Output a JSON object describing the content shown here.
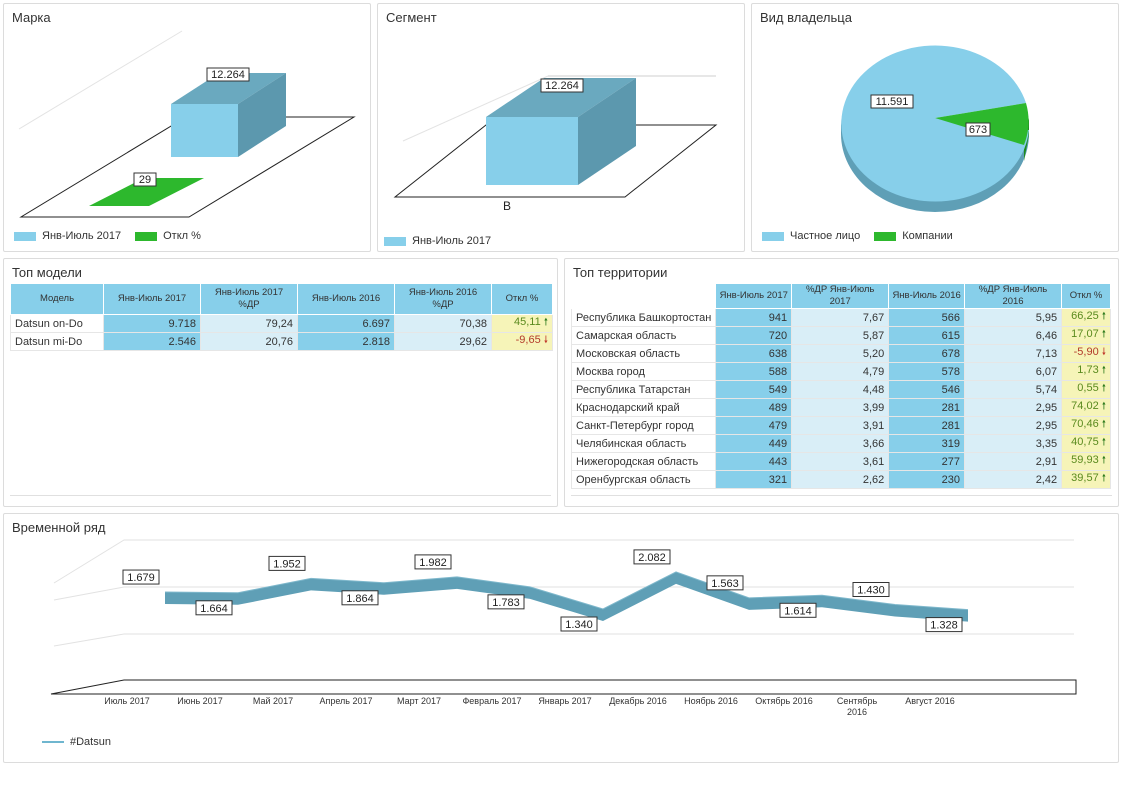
{
  "brand_panel": {
    "title": "Марка",
    "bar_main_value": 12264,
    "bar_main_label": "12.264",
    "bar_small_value": 29,
    "bar_small_label": "29",
    "legend": [
      {
        "label": "Янв-Июль 2017",
        "color": "#87cfea"
      },
      {
        "label": "Откл %",
        "color": "#2db82d"
      }
    ]
  },
  "segment_panel": {
    "title": "Сегмент",
    "bar_value": 12264,
    "bar_label": "12.264",
    "category": "B",
    "legend": [
      {
        "label": "Янв-Июль 2017",
        "color": "#87cfea"
      }
    ]
  },
  "owner_panel": {
    "title": "Вид владельца",
    "slices": [
      {
        "label": "Частное лицо",
        "value": 11591,
        "value_label": "11.591",
        "color": "#87cfea"
      },
      {
        "label": "Компании",
        "value": 673,
        "value_label": "673",
        "color": "#2db82d"
      }
    ]
  },
  "models_panel": {
    "title": "Топ модели",
    "headers": [
      "Модель",
      "Янв-Июль 2017",
      "Янв-Июль 2017 %ДР",
      "Янв-Июль 2016",
      "Янв-Июль 2016 %ДР",
      "Откл %"
    ],
    "rows": [
      {
        "name": "Datsun on-Do",
        "v1": "9.718",
        "p1": "79,24",
        "v2": "6.697",
        "p2": "70,38",
        "dev": "45,11",
        "dir": "up"
      },
      {
        "name": "Datsun mi-Do",
        "v1": "2.546",
        "p1": "20,76",
        "v2": "2.818",
        "p2": "29,62",
        "dev": "-9,65",
        "dir": "down"
      }
    ]
  },
  "territory_panel": {
    "title": "Топ территории",
    "headers": [
      "",
      "Янв-Июль 2017",
      "%ДР Янв-Июль 2017",
      "Янв-Июль 2016",
      "%ДР Янв-Июль 2016",
      "Откл %"
    ],
    "rows": [
      {
        "name": "Республика Башкортостан",
        "v1": "941",
        "p1": "7,67",
        "v2": "566",
        "p2": "5,95",
        "dev": "66,25",
        "dir": "up"
      },
      {
        "name": "Самарская область",
        "v1": "720",
        "p1": "5,87",
        "v2": "615",
        "p2": "6,46",
        "dev": "17,07",
        "dir": "up"
      },
      {
        "name": "Московская область",
        "v1": "638",
        "p1": "5,20",
        "v2": "678",
        "p2": "7,13",
        "dev": "-5,90",
        "dir": "down"
      },
      {
        "name": "Москва город",
        "v1": "588",
        "p1": "4,79",
        "v2": "578",
        "p2": "6,07",
        "dev": "1,73",
        "dir": "up"
      },
      {
        "name": "Республика Татарстан",
        "v1": "549",
        "p1": "4,48",
        "v2": "546",
        "p2": "5,74",
        "dev": "0,55",
        "dir": "up"
      },
      {
        "name": "Краснодарский край",
        "v1": "489",
        "p1": "3,99",
        "v2": "281",
        "p2": "2,95",
        "dev": "74,02",
        "dir": "up"
      },
      {
        "name": "Санкт-Петербург город",
        "v1": "479",
        "p1": "3,91",
        "v2": "281",
        "p2": "2,95",
        "dev": "70,46",
        "dir": "up"
      },
      {
        "name": "Челябинская область",
        "v1": "449",
        "p1": "3,66",
        "v2": "319",
        "p2": "3,35",
        "dev": "40,75",
        "dir": "up"
      },
      {
        "name": "Нижегородская область",
        "v1": "443",
        "p1": "3,61",
        "v2": "277",
        "p2": "2,91",
        "dev": "59,93",
        "dir": "up"
      },
      {
        "name": "Оренбургская область",
        "v1": "321",
        "p1": "2,62",
        "v2": "230",
        "p2": "2,42",
        "dev": "39,57",
        "dir": "up"
      }
    ]
  },
  "timeseries_panel": {
    "title": "Временной ряд",
    "legend": [
      {
        "label": "#Datsun",
        "color": "#6fb6cf"
      }
    ]
  },
  "chart_data": {
    "type": "line",
    "title": "",
    "xlabel": "",
    "ylabel": "",
    "categories": [
      "Июль 2017",
      "Июнь 2017",
      "Май 2017",
      "Апрель 2017",
      "Март 2017",
      "Февраль 2017",
      "Январь 2017",
      "Декабрь 2016",
      "Ноябрь 2016",
      "Октябрь 2016",
      "Сентябрь 2016",
      "Август 2016"
    ],
    "series": [
      {
        "name": "#Datsun",
        "values": [
          1679,
          1664,
          1952,
          1864,
          1982,
          1783,
          1340,
          2082,
          1563,
          1614,
          1430,
          1328
        ],
        "value_labels": [
          "1.679",
          "1.664",
          "1.952",
          "1.864",
          "1.982",
          "1.783",
          "1.340",
          "2.082",
          "1.563",
          "1.614",
          "1.430",
          "1.328"
        ]
      }
    ],
    "ylim": [
      1000,
      2400
    ],
    "legend": "bottom-left"
  }
}
